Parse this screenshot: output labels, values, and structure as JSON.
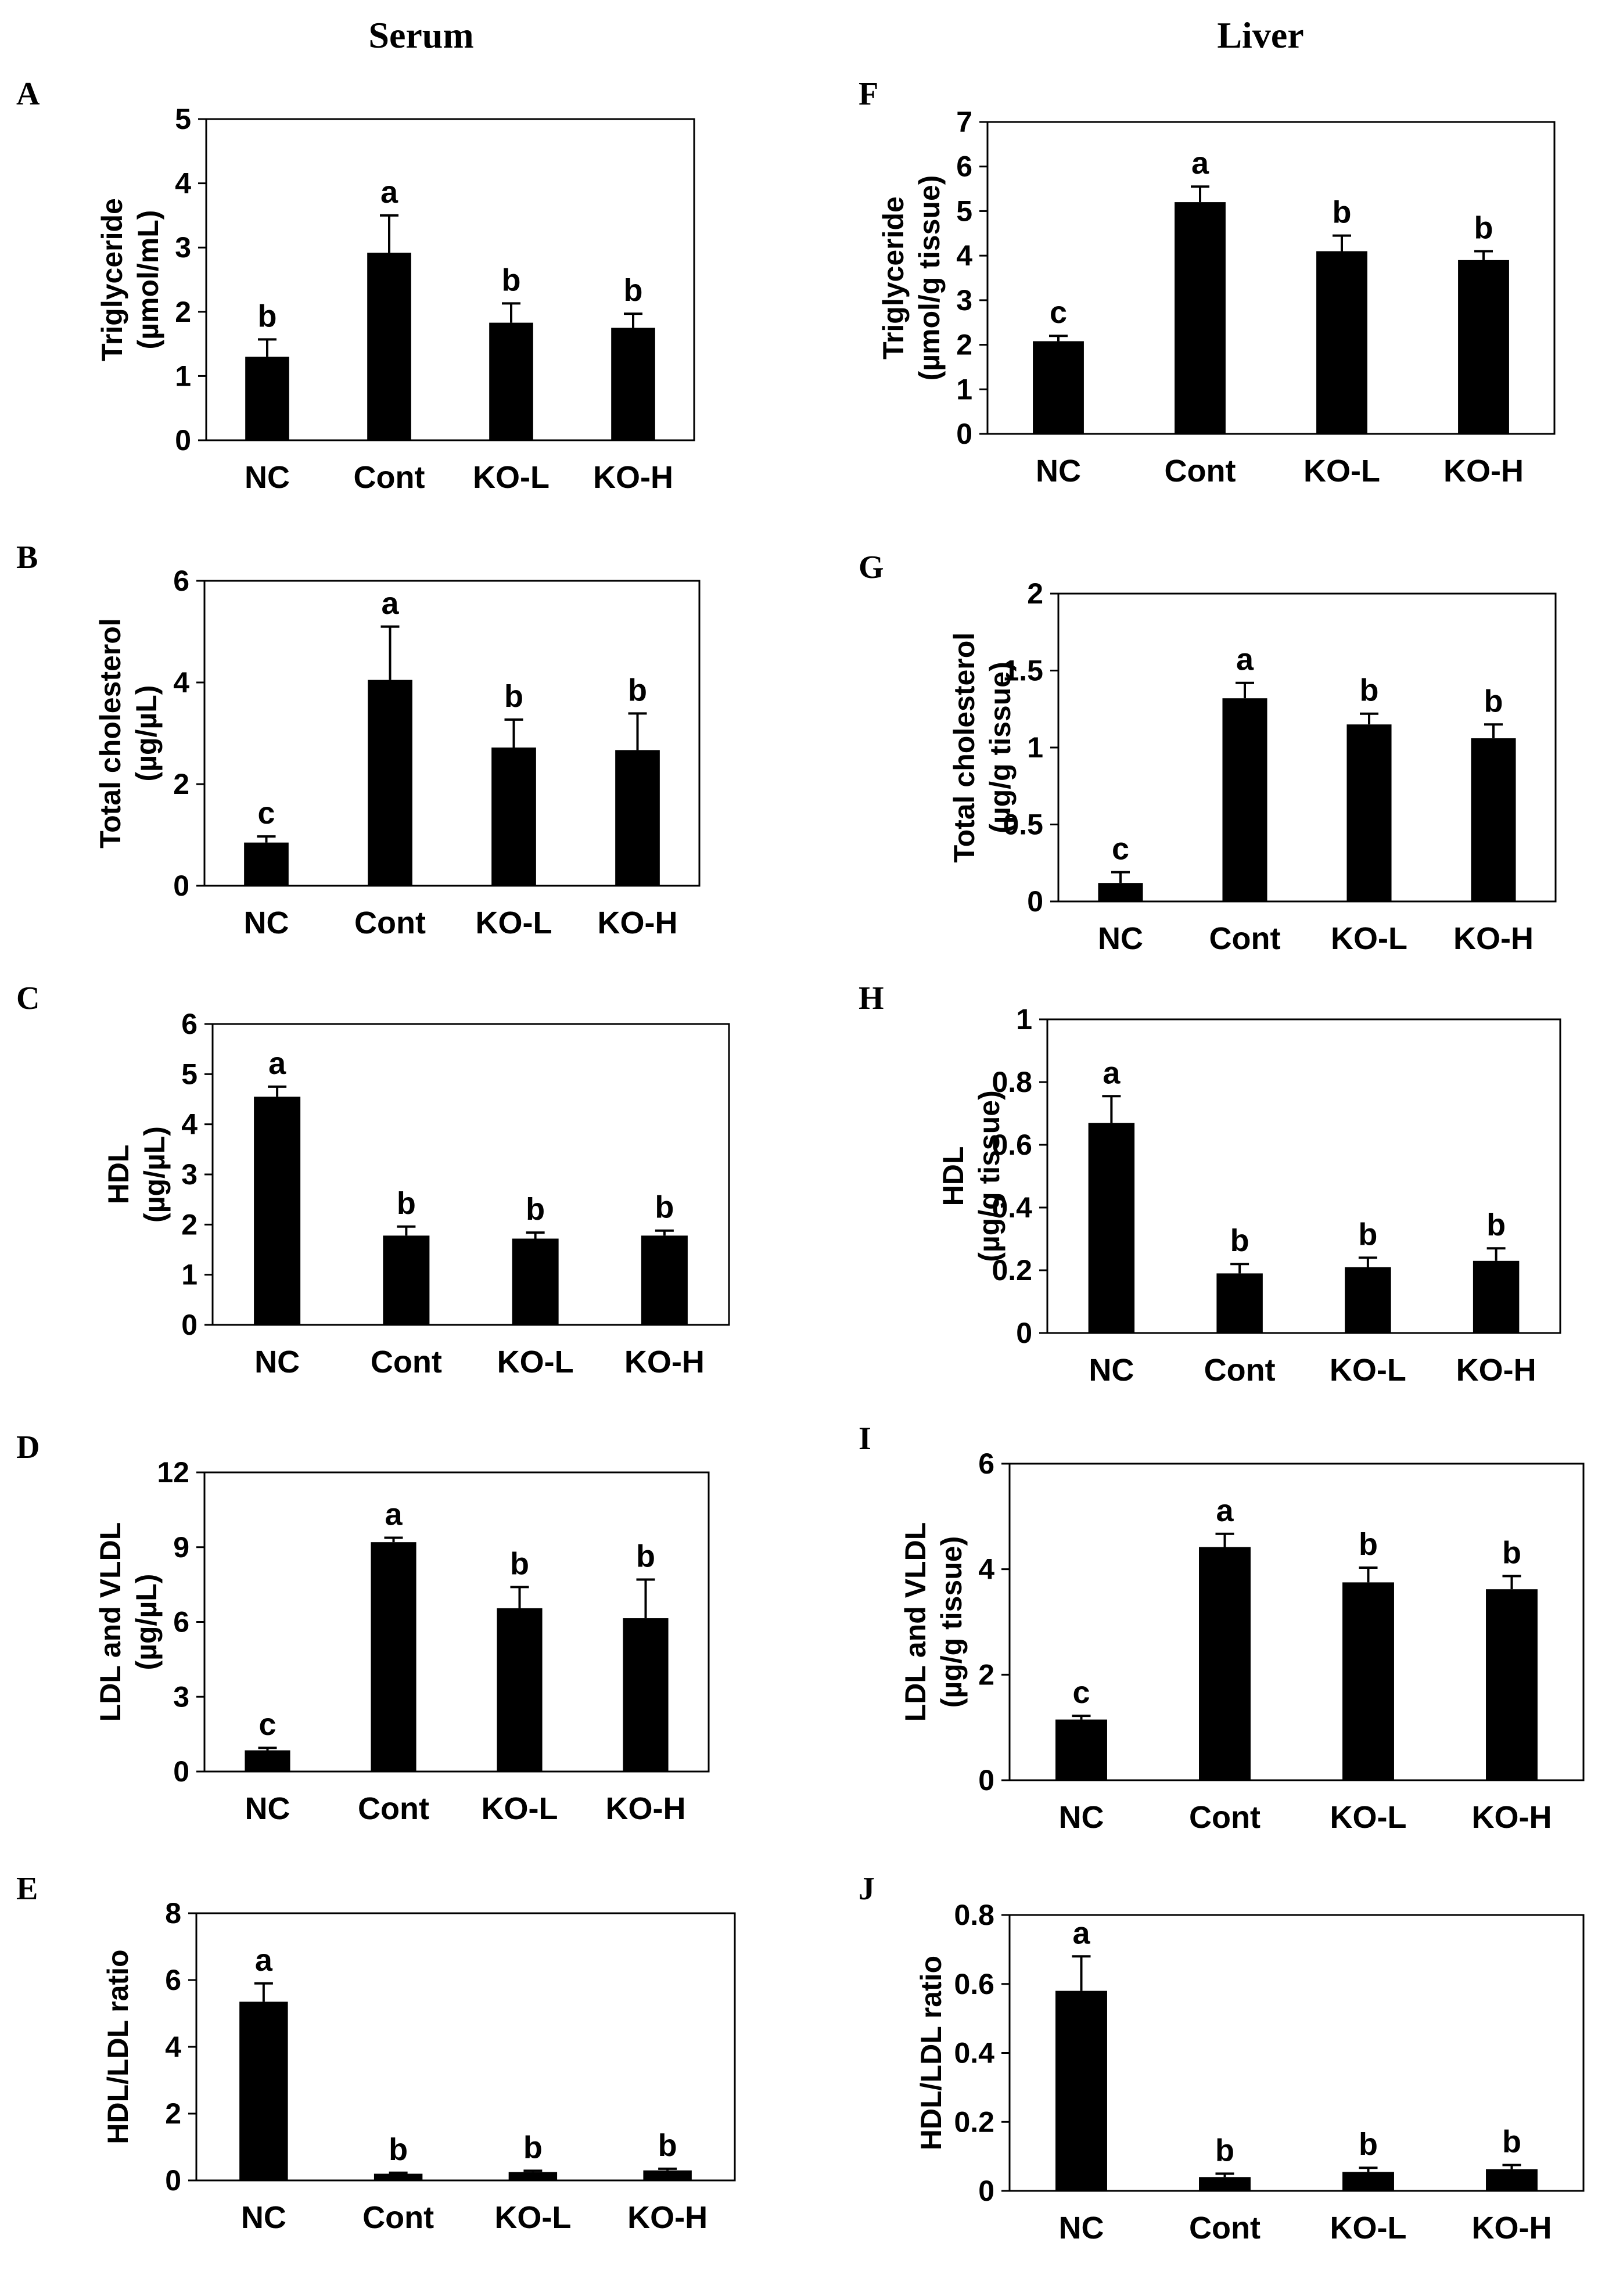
{
  "columns": [
    {
      "title": "Serum"
    },
    {
      "title": "Liver"
    }
  ],
  "chart_data": [
    {
      "id": "A",
      "type": "bar",
      "column": 0,
      "categories": [
        "NC",
        "Cont",
        "KO-L",
        "KO-H"
      ],
      "values": [
        1.3,
        2.92,
        1.83,
        1.75
      ],
      "errors": [
        0.27,
        0.58,
        0.3,
        0.22
      ],
      "labels": [
        "b",
        "a",
        "b",
        "b"
      ],
      "ylabel": [
        "Triglyceride",
        "(µmol/mL)"
      ],
      "ylim": [
        0,
        5
      ],
      "yticks": [
        0,
        1,
        2,
        3,
        4,
        5
      ],
      "tick_labels": [
        "0",
        "1",
        "2",
        "3",
        "4",
        "5"
      ]
    },
    {
      "id": "B",
      "type": "bar",
      "column": 0,
      "categories": [
        "NC",
        "Cont",
        "KO-L",
        "KO-H"
      ],
      "values": [
        0.85,
        4.05,
        2.72,
        2.67
      ],
      "errors": [
        0.12,
        1.05,
        0.55,
        0.72
      ],
      "labels": [
        "c",
        "a",
        "b",
        "b"
      ],
      "ylabel": [
        "Total cholesterol",
        "(µg/µL)"
      ],
      "ylim": [
        0,
        6
      ],
      "yticks": [
        0,
        2,
        4,
        6
      ],
      "tick_labels": [
        "0",
        "2",
        "4",
        "6"
      ]
    },
    {
      "id": "C",
      "type": "bar",
      "column": 0,
      "categories": [
        "NC",
        "Cont",
        "KO-L",
        "KO-H"
      ],
      "values": [
        4.55,
        1.78,
        1.72,
        1.78
      ],
      "errors": [
        0.2,
        0.18,
        0.12,
        0.1
      ],
      "labels": [
        "a",
        "b",
        "b",
        "b"
      ],
      "ylabel": [
        "HDL",
        "(µg/µL)"
      ],
      "ylim": [
        0,
        6
      ],
      "yticks": [
        0,
        1,
        2,
        3,
        4,
        5,
        6
      ],
      "tick_labels": [
        "0",
        "1",
        "2",
        "3",
        "4",
        "5",
        "6"
      ]
    },
    {
      "id": "D",
      "type": "bar",
      "column": 0,
      "categories": [
        "NC",
        "Cont",
        "KO-L",
        "KO-H"
      ],
      "values": [
        0.85,
        9.2,
        6.55,
        6.15
      ],
      "errors": [
        0.1,
        0.18,
        0.85,
        1.55
      ],
      "labels": [
        "c",
        "a",
        "b",
        "b"
      ],
      "ylabel": [
        "LDL and VLDL",
        "(µg/µL)"
      ],
      "ylim": [
        0,
        12
      ],
      "yticks": [
        0,
        3,
        6,
        9,
        12
      ],
      "tick_labels": [
        "0",
        "3",
        "6",
        "9",
        "12"
      ]
    },
    {
      "id": "E",
      "type": "bar",
      "column": 0,
      "categories": [
        "NC",
        "Cont",
        "KO-L",
        "KO-H"
      ],
      "values": [
        5.35,
        0.2,
        0.25,
        0.3
      ],
      "errors": [
        0.55,
        0.03,
        0.04,
        0.05
      ],
      "labels": [
        "a",
        "b",
        "b",
        "b"
      ],
      "ylabel": [
        "HDL/LDL ratio"
      ],
      "ylim": [
        0,
        8
      ],
      "yticks": [
        0,
        2,
        4,
        6,
        8
      ],
      "tick_labels": [
        "0",
        "2",
        "4",
        "6",
        "8"
      ]
    },
    {
      "id": "F",
      "type": "bar",
      "column": 1,
      "categories": [
        "NC",
        "Cont",
        "KO-L",
        "KO-H"
      ],
      "values": [
        2.08,
        5.2,
        4.1,
        3.9
      ],
      "errors": [
        0.12,
        0.35,
        0.35,
        0.2
      ],
      "labels": [
        "c",
        "a",
        "b",
        "b"
      ],
      "ylabel": [
        "Triglyceride",
        "(µmol/g tissue)"
      ],
      "ylim": [
        0,
        7
      ],
      "yticks": [
        0,
        1,
        2,
        3,
        4,
        5,
        6,
        7
      ],
      "tick_labels": [
        "0",
        "1",
        "2",
        "3",
        "4",
        "5",
        "6",
        "7"
      ]
    },
    {
      "id": "G",
      "type": "bar",
      "column": 1,
      "categories": [
        "NC",
        "Cont",
        "KO-L",
        "KO-H"
      ],
      "values": [
        0.12,
        1.32,
        1.15,
        1.06
      ],
      "errors": [
        0.07,
        0.1,
        0.07,
        0.09
      ],
      "labels": [
        "c",
        "a",
        "b",
        "b"
      ],
      "ylabel": [
        "Total cholesterol",
        "(µg/g tissue)"
      ],
      "ylim": [
        0,
        2
      ],
      "yticks": [
        0,
        0.5,
        1,
        1.5,
        2
      ],
      "tick_labels": [
        "0",
        "0.5",
        "1",
        "1.5",
        "2"
      ]
    },
    {
      "id": "H",
      "type": "bar",
      "column": 1,
      "categories": [
        "NC",
        "Cont",
        "KO-L",
        "KO-H"
      ],
      "values": [
        0.67,
        0.19,
        0.21,
        0.23
      ],
      "errors": [
        0.085,
        0.03,
        0.03,
        0.04
      ],
      "labels": [
        "a",
        "b",
        "b",
        "b"
      ],
      "ylabel": [
        "HDL",
        "(µg/g tissue)"
      ],
      "ylim": [
        0,
        1
      ],
      "yticks": [
        0,
        0.2,
        0.4,
        0.6,
        0.8,
        1
      ],
      "tick_labels": [
        "0",
        "0.2",
        "0.4",
        "0.6",
        "0.8",
        "1"
      ]
    },
    {
      "id": "I",
      "type": "bar",
      "column": 1,
      "categories": [
        "NC",
        "Cont",
        "KO-L",
        "KO-H"
      ],
      "values": [
        1.15,
        4.42,
        3.75,
        3.62
      ],
      "errors": [
        0.07,
        0.25,
        0.28,
        0.25
      ],
      "labels": [
        "c",
        "a",
        "b",
        "b"
      ],
      "ylabel": [
        "LDL and VLDL",
        "(µg/g tissue)"
      ],
      "ylim": [
        0,
        6
      ],
      "yticks": [
        0,
        2,
        4,
        6
      ],
      "tick_labels": [
        "0",
        "2",
        "4",
        "6"
      ]
    },
    {
      "id": "J",
      "type": "bar",
      "column": 1,
      "categories": [
        "NC",
        "Cont",
        "KO-L",
        "KO-H"
      ],
      "values": [
        0.58,
        0.04,
        0.055,
        0.063
      ],
      "errors": [
        0.1,
        0.01,
        0.012,
        0.012
      ],
      "labels": [
        "a",
        "b",
        "b",
        "b"
      ],
      "ylabel": [
        "HDL/LDL ratio"
      ],
      "ylim": [
        0,
        0.8
      ],
      "yticks": [
        0,
        0.2,
        0.4,
        0.6,
        0.8
      ],
      "tick_labels": [
        "0",
        "0.2",
        "0.4",
        "0.6",
        "0.8"
      ]
    }
  ]
}
